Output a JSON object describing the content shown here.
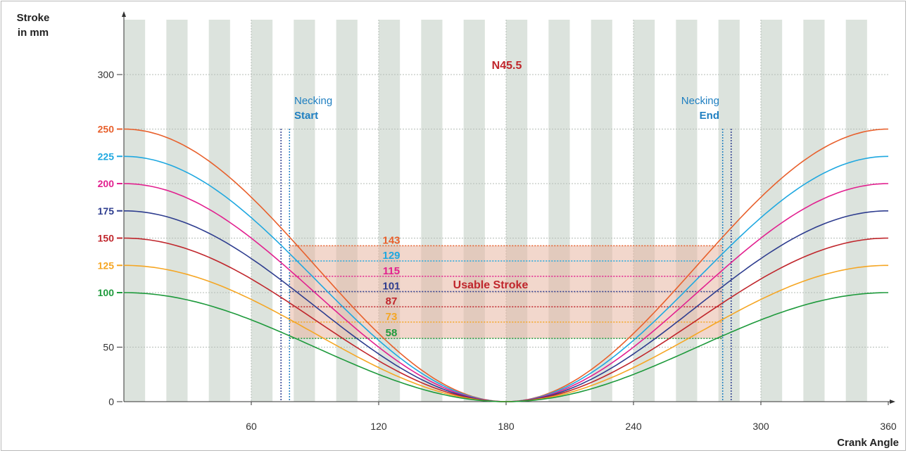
{
  "chart_data": {
    "type": "line",
    "title": "N45.5",
    "ylabel_line1": "Stroke",
    "ylabel_line2": "in mm",
    "xlabel": "Crank Angle",
    "xlim": [
      0,
      360
    ],
    "ylim": [
      0,
      350
    ],
    "x_ticks": [
      60,
      120,
      180,
      240,
      300,
      360
    ],
    "y_ticks": [
      0,
      50,
      300
    ],
    "series": [
      {
        "stroke": 250,
        "color": "#e8602c",
        "usable": 143
      },
      {
        "stroke": 225,
        "color": "#1fa8e0",
        "usable": 129
      },
      {
        "stroke": 200,
        "color": "#e2208f",
        "usable": 115
      },
      {
        "stroke": 175,
        "color": "#2e3d8f",
        "usable": 101
      },
      {
        "stroke": 150,
        "color": "#c0262c",
        "usable": 87
      },
      {
        "stroke": 125,
        "color": "#f5a623",
        "usable": 73
      },
      {
        "stroke": 100,
        "color": "#1e9a3c",
        "usable": 58
      }
    ],
    "necking_start": {
      "label_line1": "Necking",
      "label_line2": "Start",
      "x_inner": 78,
      "x_outer": 74
    },
    "necking_end": {
      "label_line1": "Necking",
      "label_line2": "End",
      "x_inner": 282,
      "x_outer": 286
    },
    "usable_stroke_label": "Usable Stroke",
    "colors": {
      "necking_label": "#1f7fc1",
      "title": "#c0262c",
      "band_fill": "#e8b7a3",
      "stripe": "#dce3dd",
      "inner_dash": "#1f7fc1",
      "outer_dash": "#2e3d8f"
    }
  }
}
